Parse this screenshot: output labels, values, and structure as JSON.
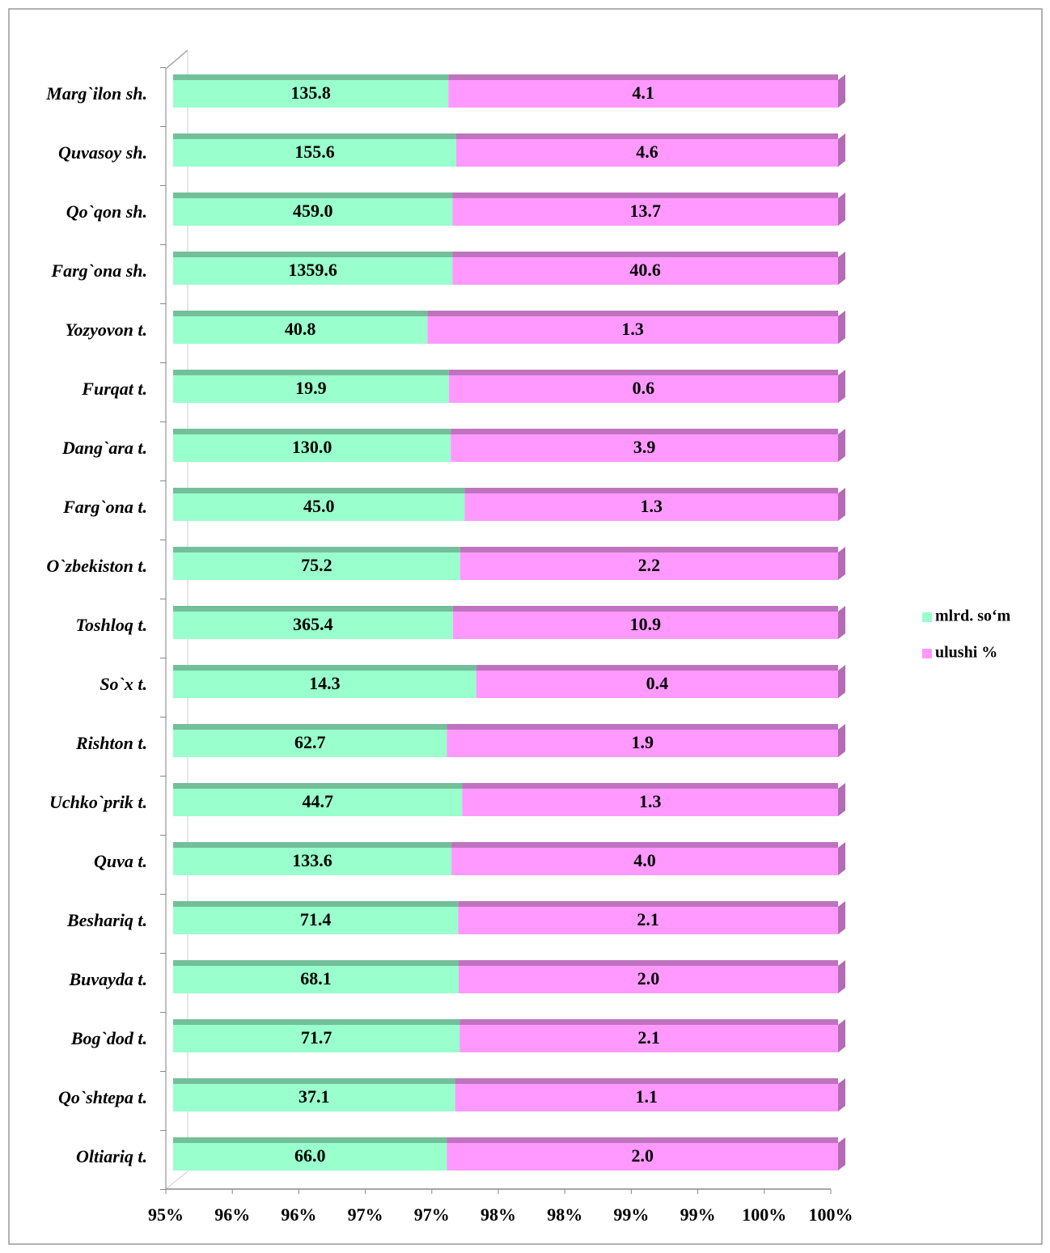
{
  "chart_data": {
    "type": "bar",
    "orientation": "horizontal",
    "stack": "percent",
    "categories": [
      "Marg`ilon sh.",
      "Quvasoy sh.",
      "Qo`qon sh.",
      "Farg`ona sh.",
      "Yozyovon t.",
      "Furqat t.",
      "Dang`ara t.",
      "Farg`ona t.",
      "O`zbekiston t.",
      "Toshloq t.",
      "So`x t.",
      "Rishton t.",
      "Uchko`prik t.",
      "Quva t.",
      "Beshariq t.",
      "Buvayda t.",
      "Bog`dod t.",
      "Qo`shtepa t.",
      "Oltiariq t."
    ],
    "series": [
      {
        "name": "mlrd. so‘m",
        "color": "#99ffcc",
        "values": [
          135.8,
          155.6,
          459.0,
          1359.6,
          40.8,
          19.9,
          130.0,
          45.0,
          75.2,
          365.4,
          14.3,
          62.7,
          44.7,
          133.6,
          71.4,
          68.1,
          71.7,
          37.1,
          66.0
        ],
        "value_labels": [
          "135.8",
          "155.6",
          "459.0",
          "1359.6",
          "40.8",
          "19.9",
          "130.0",
          "45.0",
          "75.2",
          "365.4",
          "14.3",
          "62.7",
          "44.7",
          "133.6",
          "71.4",
          "68.1",
          "71.7",
          "37.1",
          "66.0"
        ]
      },
      {
        "name": "ulushi %",
        "color": "#ff99ff",
        "values": [
          4.1,
          4.6,
          13.7,
          40.6,
          1.3,
          0.6,
          3.9,
          1.3,
          2.2,
          10.9,
          0.4,
          1.9,
          1.3,
          4.0,
          2.1,
          2.0,
          2.1,
          1.1,
          2.0
        ],
        "value_labels": [
          "4.1",
          "4.6",
          "13.7",
          "40.6",
          "1.3",
          "0.6",
          "3.9",
          "1.3",
          "2.2",
          "10.9",
          "0.4",
          "1.9",
          "1.3",
          "4.0",
          "2.1",
          "2.0",
          "2.1",
          "1.1",
          "2.0"
        ]
      }
    ],
    "xlim": [
      95,
      100
    ],
    "xticks": [
      {
        "value": 95,
        "label": "95%"
      },
      {
        "value": 95.5,
        "label": "96%"
      },
      {
        "value": 96,
        "label": "96%"
      },
      {
        "value": 96.5,
        "label": "97%"
      },
      {
        "value": 97,
        "label": "97%"
      },
      {
        "value": 97.5,
        "label": "98%"
      },
      {
        "value": 98,
        "label": "98%"
      },
      {
        "value": 98.5,
        "label": "99%"
      },
      {
        "value": 99,
        "label": "99%"
      },
      {
        "value": 99.5,
        "label": "100%"
      },
      {
        "value": 100,
        "label": "100%"
      }
    ],
    "legend": "right"
  }
}
